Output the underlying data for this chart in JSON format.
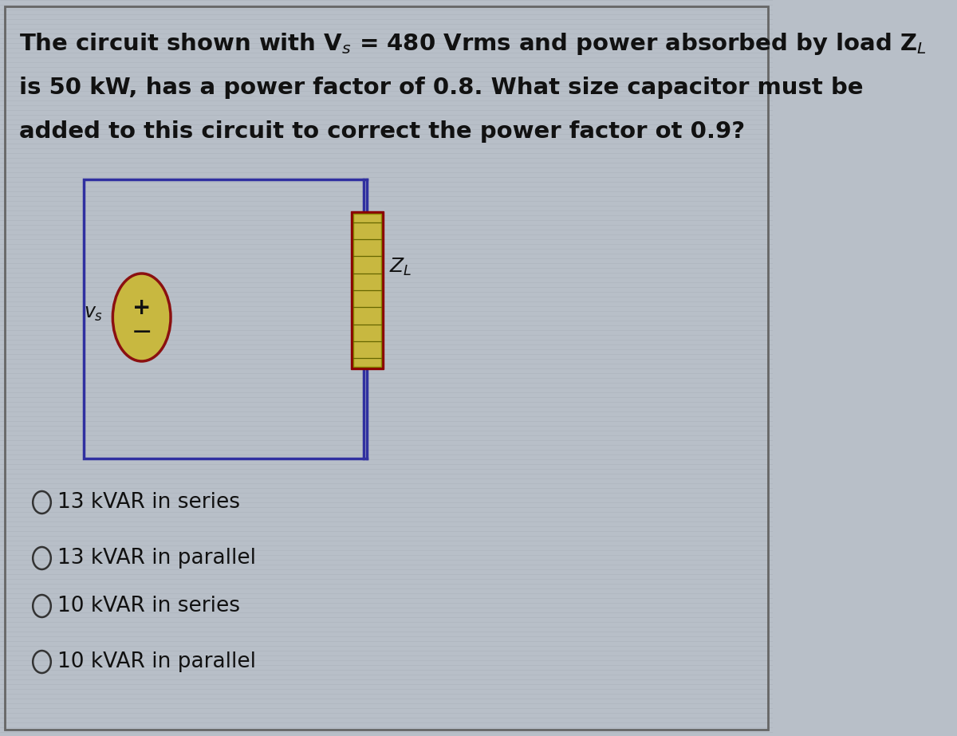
{
  "background_color": "#b8bfc8",
  "scan_line_color": "#9aa0aa",
  "outer_border_color": "#555555",
  "title_lines": [
    "The circuit shown with V$_s$ = 480 Vrms and power absorbed by load Z$_L$",
    "is 50 kW, has a power factor of 0.8. What size capacitor must be",
    "added to this circuit to correct the power factor ot 0.9?"
  ],
  "options": [
    "13 kVAR in series",
    "13 kVAR in parallel",
    "10 kVAR in series",
    "10 kVAR in parallel"
  ],
  "circuit_line_color": "#3030a0",
  "source_ellipse_color": "#c8b840",
  "source_edge_color": "#8b1010",
  "zl_box_face": "#c8b840",
  "zl_box_edge": "#8b0000",
  "text_color": "#111111",
  "title_fontsize": 21,
  "option_fontsize": 19,
  "label_fontsize": 18,
  "vs_label_fontsize": 17
}
